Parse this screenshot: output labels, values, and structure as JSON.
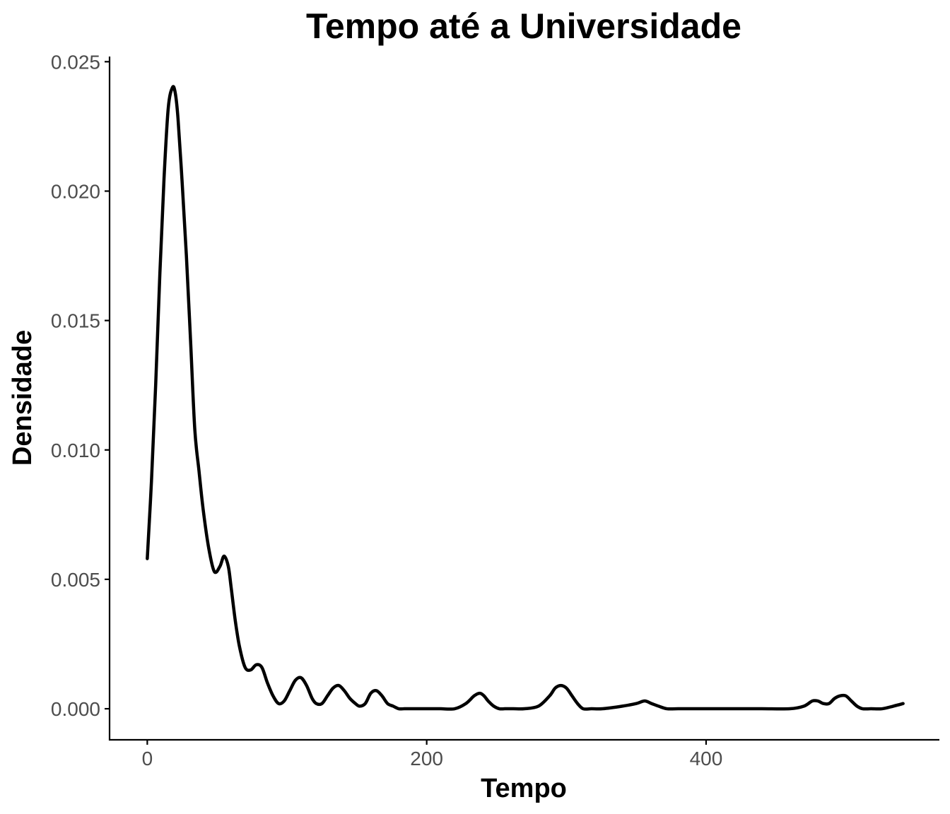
{
  "chart_data": {
    "type": "line",
    "title": "Tempo até a Universidade",
    "xlabel": "Tempo",
    "ylabel": "Densidade",
    "xlim": [
      -27,
      567
    ],
    "ylim": [
      -0.0012,
      0.0252
    ],
    "x_ticks": [
      0,
      200,
      400
    ],
    "x_tick_labels": [
      "0",
      "200",
      "400"
    ],
    "y_ticks": [
      0,
      0.005,
      0.01,
      0.015,
      0.02,
      0.025
    ],
    "y_tick_labels": [
      "0.000",
      "0.005",
      "0.010",
      "0.015",
      "0.020",
      "0.025"
    ],
    "grid": false,
    "legend": "none",
    "line_color": "#000000",
    "series": [
      {
        "x": [
          0,
          3,
          6,
          9,
          12,
          15,
          18,
          20,
          22,
          25,
          28,
          31,
          34,
          37,
          40,
          44,
          48,
          52,
          55,
          58,
          60,
          63,
          66,
          70,
          74,
          78,
          82,
          86,
          90,
          94,
          98,
          102,
          106,
          110,
          114,
          118,
          121,
          125,
          129,
          133,
          137,
          141,
          145,
          149,
          152,
          156,
          160,
          164,
          168,
          172,
          176,
          180,
          184,
          188,
          192,
          196,
          200,
          210,
          220,
          228,
          234,
          238,
          241,
          244,
          248,
          252,
          256,
          262,
          270,
          280,
          288,
          292,
          296,
          300,
          304,
          308,
          312,
          318,
          326,
          340,
          350,
          356,
          361,
          366,
          372,
          380,
          400,
          420,
          440,
          460,
          470,
          476,
          480,
          484,
          488,
          492,
          496,
          500,
          504,
          508,
          512,
          518,
          526,
          534,
          541
        ],
        "y": [
          0.0058,
          0.0088,
          0.0125,
          0.0168,
          0.0205,
          0.0232,
          0.024,
          0.0238,
          0.0228,
          0.0203,
          0.0175,
          0.0142,
          0.0108,
          0.0092,
          0.0077,
          0.0062,
          0.0053,
          0.0055,
          0.0059,
          0.0055,
          0.0047,
          0.0034,
          0.0024,
          0.0016,
          0.0015,
          0.0017,
          0.0016,
          0.001,
          0.0005,
          0.0002,
          0.0003,
          0.0007,
          0.0011,
          0.0012,
          0.0009,
          0.0004,
          0.0002,
          0.0002,
          0.0005,
          0.0008,
          0.0009,
          0.0007,
          0.0004,
          0.0002,
          0.0001,
          0.0002,
          0.0006,
          0.0007,
          0.0005,
          0.0002,
          0.0001,
          0.0,
          0.0,
          0.0,
          0.0,
          0.0,
          0.0,
          0.0,
          0.0,
          0.0002,
          0.0005,
          0.0006,
          0.0005,
          0.0003,
          0.0001,
          0.0,
          0.0,
          0.0,
          0.0,
          0.0001,
          0.0005,
          0.0008,
          0.0009,
          0.0008,
          0.0005,
          0.0002,
          0.0,
          0.0,
          0.0,
          0.0001,
          0.0002,
          0.0003,
          0.0002,
          0.0001,
          0.0,
          0.0,
          0.0,
          0.0,
          0.0,
          0.0,
          0.0001,
          0.0003,
          0.0003,
          0.0002,
          0.0002,
          0.0004,
          0.0005,
          0.0005,
          0.0003,
          0.0001,
          0.0,
          0.0,
          0.0,
          0.0001,
          0.0002
        ]
      }
    ]
  }
}
